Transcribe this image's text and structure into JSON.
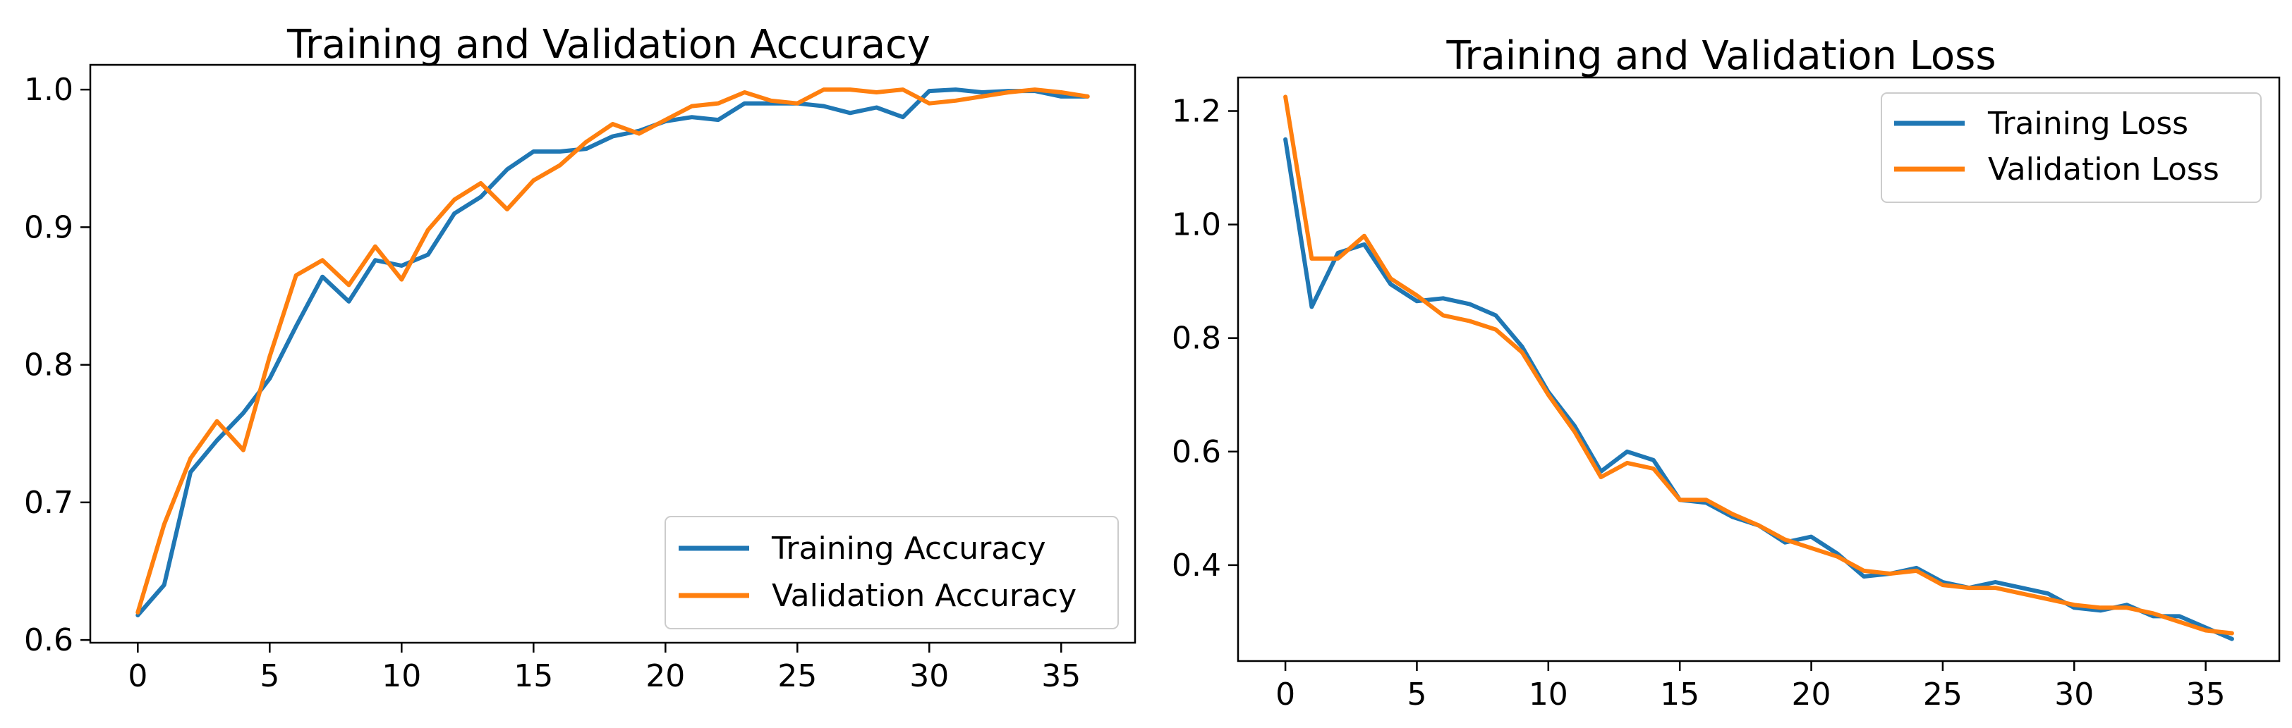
{
  "chart_data": [
    {
      "type": "line",
      "title": "Training and Validation Accuracy",
      "xlabel": "",
      "ylabel": "",
      "xlim": [
        -1.8,
        37.8
      ],
      "ylim": [
        0.598,
        1.018
      ],
      "xticks": [
        0,
        5,
        10,
        15,
        20,
        25,
        30,
        35
      ],
      "yticks": [
        0.6,
        0.7,
        0.8,
        0.9,
        1.0
      ],
      "ytick_labels": [
        "0.6",
        "0.7",
        "0.8",
        "0.9",
        "1.0"
      ],
      "grid": false,
      "legend_position": "lower right",
      "x": [
        0,
        1,
        2,
        3,
        4,
        5,
        6,
        7,
        8,
        9,
        10,
        11,
        12,
        13,
        14,
        15,
        16,
        17,
        18,
        19,
        20,
        21,
        22,
        23,
        24,
        25,
        26,
        27,
        28,
        29,
        30,
        31,
        32,
        33,
        34,
        35,
        36
      ],
      "series": [
        {
          "name": "Training Accuracy",
          "color": "#1f77b4",
          "values": [
            0.618,
            0.64,
            0.722,
            0.745,
            0.765,
            0.79,
            0.828,
            0.864,
            0.846,
            0.876,
            0.872,
            0.88,
            0.91,
            0.922,
            0.942,
            0.955,
            0.955,
            0.957,
            0.966,
            0.97,
            0.977,
            0.98,
            0.978,
            0.99,
            0.99,
            0.99,
            0.988,
            0.983,
            0.987,
            0.98,
            0.999,
            1.0,
            0.998,
            0.999,
            0.999,
            0.995,
            0.995
          ]
        },
        {
          "name": "Validation Accuracy",
          "color": "#ff7f0e",
          "values": [
            0.62,
            0.684,
            0.732,
            0.759,
            0.738,
            0.806,
            0.865,
            0.876,
            0.858,
            0.886,
            0.862,
            0.898,
            0.92,
            0.932,
            0.913,
            0.934,
            0.945,
            0.962,
            0.975,
            0.968,
            0.978,
            0.988,
            0.99,
            0.998,
            0.992,
            0.99,
            1.0,
            1.0,
            0.998,
            1.0,
            0.99,
            0.992,
            0.995,
            0.998,
            1.0,
            0.998,
            0.995
          ]
        }
      ]
    },
    {
      "type": "line",
      "title": "Training and Validation Loss",
      "xlabel": "",
      "ylabel": "",
      "xlim": [
        -1.8,
        37.8
      ],
      "ylim": [
        0.231,
        1.259
      ],
      "xticks": [
        0,
        5,
        10,
        15,
        20,
        25,
        30,
        35
      ],
      "yticks": [
        0.4,
        0.6,
        0.8,
        1.0,
        1.2
      ],
      "ytick_labels": [
        "0.4",
        "0.6",
        "0.8",
        "1.0",
        "1.2"
      ],
      "grid": false,
      "legend_position": "upper right",
      "x": [
        0,
        1,
        2,
        3,
        4,
        5,
        6,
        7,
        8,
        9,
        10,
        11,
        12,
        13,
        14,
        15,
        16,
        17,
        18,
        19,
        20,
        21,
        22,
        23,
        24,
        25,
        26,
        27,
        28,
        29,
        30,
        31,
        32,
        33,
        34,
        35,
        36
      ],
      "series": [
        {
          "name": "Training Loss",
          "color": "#1f77b4",
          "values": [
            1.15,
            0.855,
            0.95,
            0.965,
            0.895,
            0.865,
            0.87,
            0.86,
            0.84,
            0.785,
            0.705,
            0.645,
            0.565,
            0.6,
            0.585,
            0.515,
            0.51,
            0.485,
            0.47,
            0.44,
            0.45,
            0.42,
            0.38,
            0.385,
            0.395,
            0.37,
            0.36,
            0.37,
            0.36,
            0.35,
            0.325,
            0.32,
            0.33,
            0.31,
            0.31,
            0.29,
            0.27
          ]
        },
        {
          "name": "Validation Loss",
          "color": "#ff7f0e",
          "values": [
            1.225,
            0.94,
            0.94,
            0.98,
            0.905,
            0.875,
            0.84,
            0.83,
            0.815,
            0.775,
            0.7,
            0.635,
            0.555,
            0.58,
            0.57,
            0.515,
            0.515,
            0.49,
            0.47,
            0.445,
            0.43,
            0.415,
            0.39,
            0.385,
            0.39,
            0.365,
            0.36,
            0.36,
            0.35,
            0.34,
            0.33,
            0.325,
            0.325,
            0.315,
            0.3,
            0.285,
            0.28
          ]
        }
      ]
    }
  ]
}
